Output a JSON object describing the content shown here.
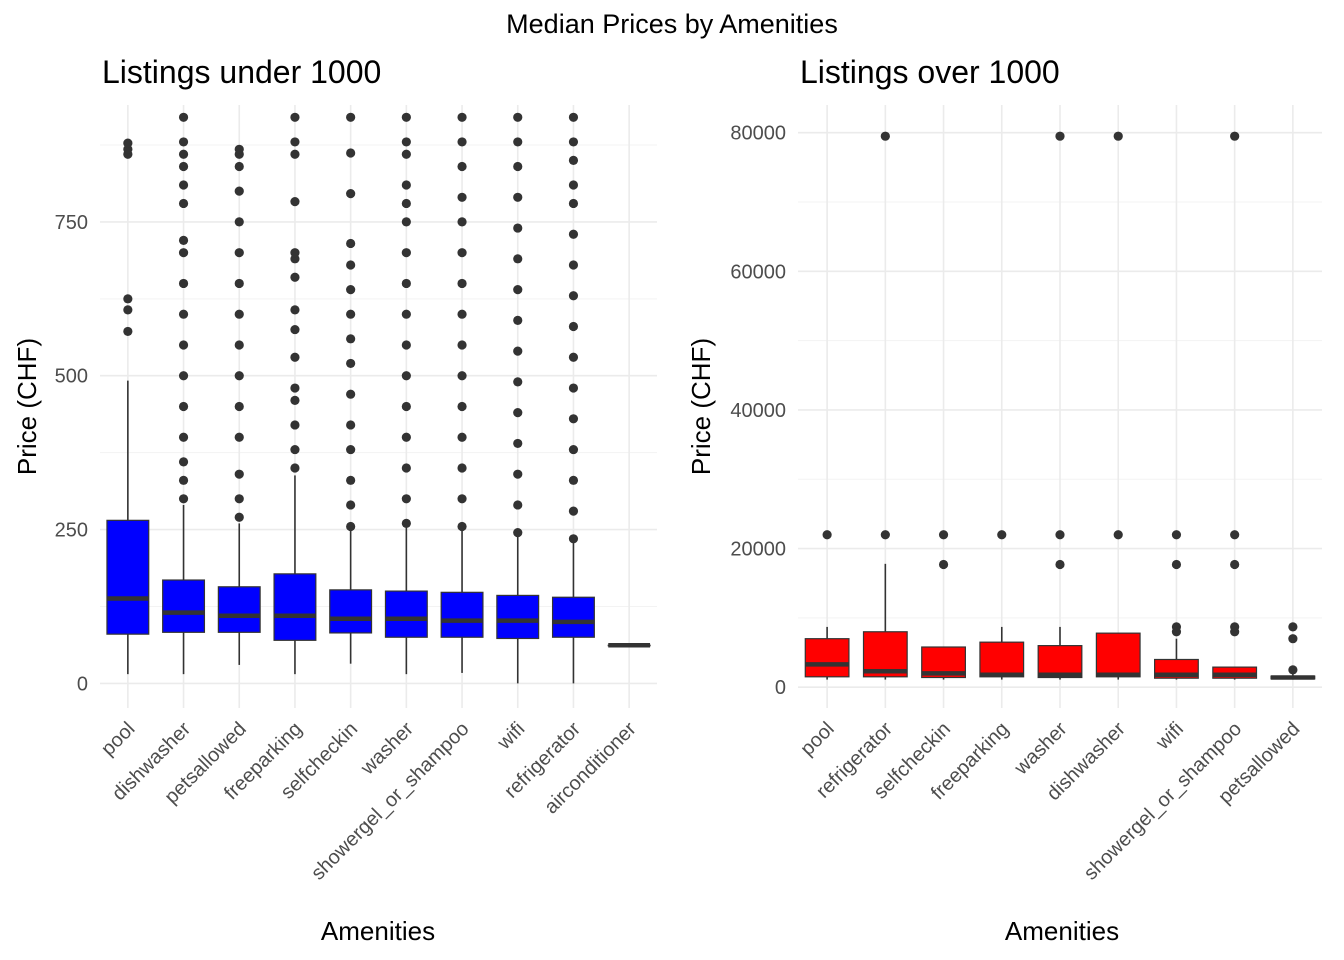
{
  "figure_title": "Median Prices by Amenities",
  "chart_data": [
    {
      "type": "box",
      "title": "Listings under 1000",
      "xlabel": "Amenities",
      "ylabel": "Price (CHF)",
      "ylim": [
        -40,
        940
      ],
      "yticks": [
        0,
        250,
        500,
        750
      ],
      "ytick_labels": [
        "0",
        "250",
        "500",
        "750"
      ],
      "fill_color": "#0000ff",
      "grid": true,
      "legend": "none",
      "categories": [
        "pool",
        "dishwasher",
        "petsallowed",
        "freeparking",
        "selfcheckin",
        "washer",
        "showergel_or_shampoo",
        "wifi",
        "refrigerator",
        "airconditioner"
      ],
      "boxes": [
        {
          "category": "pool",
          "min": 15,
          "q1": 80,
          "median": 138,
          "q3": 265,
          "max": 492,
          "outliers": [
            572,
            607,
            625,
            860,
            868,
            878
          ]
        },
        {
          "category": "dishwasher",
          "min": 15,
          "q1": 83,
          "median": 115,
          "q3": 168,
          "max": 290,
          "outliers": [
            300,
            330,
            360,
            400,
            450,
            500,
            550,
            600,
            650,
            700,
            720,
            780,
            810,
            840,
            860,
            880,
            920
          ]
        },
        {
          "category": "petsallowed",
          "min": 30,
          "q1": 83,
          "median": 110,
          "q3": 157,
          "max": 260,
          "outliers": [
            270,
            300,
            340,
            400,
            450,
            500,
            550,
            600,
            650,
            700,
            750,
            800,
            840,
            860,
            868
          ]
        },
        {
          "category": "freeparking",
          "min": 15,
          "q1": 70,
          "median": 110,
          "q3": 178,
          "max": 338,
          "outliers": [
            350,
            380,
            420,
            460,
            480,
            530,
            575,
            607,
            660,
            690,
            700,
            783,
            860,
            880,
            920
          ]
        },
        {
          "category": "selfcheckin",
          "min": 32,
          "q1": 82,
          "median": 105,
          "q3": 152,
          "max": 248,
          "outliers": [
            255,
            290,
            330,
            380,
            420,
            470,
            520,
            560,
            600,
            640,
            680,
            715,
            796,
            862,
            920
          ]
        },
        {
          "category": "washer",
          "min": 15,
          "q1": 75,
          "median": 105,
          "q3": 150,
          "max": 255,
          "outliers": [
            260,
            300,
            350,
            400,
            450,
            500,
            550,
            600,
            650,
            700,
            750,
            780,
            810,
            860,
            880,
            920
          ]
        },
        {
          "category": "showergel_or_shampoo",
          "min": 17,
          "q1": 75,
          "median": 102,
          "q3": 148,
          "max": 250,
          "outliers": [
            255,
            300,
            350,
            400,
            450,
            500,
            550,
            600,
            650,
            700,
            750,
            790,
            840,
            880,
            920
          ]
        },
        {
          "category": "wifi",
          "min": 0,
          "q1": 73,
          "median": 102,
          "q3": 143,
          "max": 240,
          "outliers": [
            245,
            290,
            340,
            390,
            440,
            490,
            540,
            590,
            640,
            690,
            740,
            790,
            840,
            880,
            920
          ]
        },
        {
          "category": "refrigerator",
          "min": 0,
          "q1": 75,
          "median": 100,
          "q3": 140,
          "max": 230,
          "outliers": [
            235,
            280,
            330,
            380,
            430,
            480,
            530,
            580,
            630,
            680,
            730,
            780,
            810,
            850,
            880,
            920
          ]
        },
        {
          "category": "airconditioner",
          "min": 62,
          "q1": 62,
          "median": 62,
          "q3": 62,
          "max": 62,
          "outliers": []
        }
      ]
    },
    {
      "type": "box",
      "title": "Listings over 1000",
      "xlabel": "Amenities",
      "ylabel": "Price (CHF)",
      "ylim": [
        -3000,
        84000
      ],
      "yticks": [
        0,
        20000,
        40000,
        60000,
        80000
      ],
      "ytick_labels": [
        "0",
        "20000",
        "40000",
        "60000",
        "80000"
      ],
      "fill_color": "#ff0000",
      "grid": true,
      "legend": "none",
      "categories": [
        "pool",
        "refrigerator",
        "selfcheckin",
        "freeparking",
        "washer",
        "dishwasher",
        "wifi",
        "showergel_or_shampoo",
        "petsallowed"
      ],
      "boxes": [
        {
          "category": "pool",
          "min": 1100,
          "q1": 1500,
          "median": 3300,
          "q3": 7000,
          "max": 8700,
          "outliers": [
            22000
          ]
        },
        {
          "category": "refrigerator",
          "min": 1100,
          "q1": 1500,
          "median": 2300,
          "q3": 8000,
          "max": 17800,
          "outliers": [
            22000,
            79500
          ]
        },
        {
          "category": "selfcheckin",
          "min": 1100,
          "q1": 1400,
          "median": 2000,
          "q3": 5800,
          "max": 5800,
          "outliers": [
            17700,
            22000
          ]
        },
        {
          "category": "freeparking",
          "min": 1100,
          "q1": 1500,
          "median": 1800,
          "q3": 6500,
          "max": 8700,
          "outliers": [
            22000
          ]
        },
        {
          "category": "washer",
          "min": 1100,
          "q1": 1400,
          "median": 1800,
          "q3": 6000,
          "max": 8700,
          "outliers": [
            17700,
            22000,
            79500
          ]
        },
        {
          "category": "dishwasher",
          "min": 1100,
          "q1": 1500,
          "median": 1800,
          "q3": 7800,
          "max": 7800,
          "outliers": [
            22000,
            79500
          ]
        },
        {
          "category": "wifi",
          "min": 1100,
          "q1": 1300,
          "median": 1800,
          "q3": 4000,
          "max": 7000,
          "outliers": [
            8000,
            8700,
            17700,
            22000
          ]
        },
        {
          "category": "showergel_or_shampoo",
          "min": 1100,
          "q1": 1300,
          "median": 1800,
          "q3": 2900,
          "max": 2900,
          "outliers": [
            8000,
            8700,
            17700,
            22000,
            79500
          ]
        },
        {
          "category": "petsallowed",
          "min": 1100,
          "q1": 1200,
          "median": 1400,
          "q3": 1600,
          "max": 1900,
          "outliers": [
            2500,
            7000,
            8700
          ]
        }
      ]
    }
  ]
}
